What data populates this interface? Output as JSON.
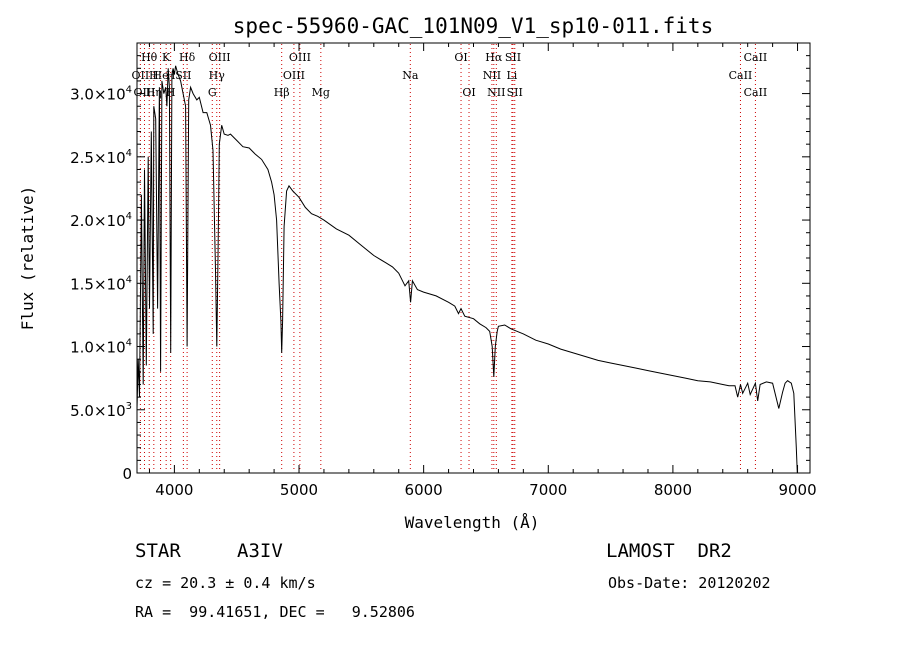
{
  "chart_data": {
    "type": "line",
    "title": "spec-55960-GAC_101N09_V1_sp10-011.fits",
    "xlabel": "Wavelength (Å)",
    "ylabel": "Flux (relative)",
    "xlim": [
      3700,
      9100
    ],
    "ylim": [
      0,
      34000
    ],
    "x_ticks": [
      4000,
      5000,
      6000,
      7000,
      8000,
      9000
    ],
    "x_tick_labels": [
      "4000",
      "5000",
      "6000",
      "7000",
      "8000",
      "9000"
    ],
    "y_ticks": [
      0,
      5000,
      10000,
      15000,
      20000,
      25000,
      30000
    ],
    "y_tick_labels": [
      {
        "mantissa": "0",
        "exp": ""
      },
      {
        "mantissa": "5.0×10",
        "exp": "3"
      },
      {
        "mantissa": "1.0×10",
        "exp": "4"
      },
      {
        "mantissa": "1.5×10",
        "exp": "4"
      },
      {
        "mantissa": "2.0×10",
        "exp": "4"
      },
      {
        "mantissa": "2.5×10",
        "exp": "4"
      },
      {
        "mantissa": "3.0×10",
        "exp": "4"
      }
    ],
    "series": [
      {
        "x": [
          3700,
          3710,
          3720,
          3735,
          3750,
          3760,
          3775,
          3790,
          3800,
          3815,
          3830,
          3835,
          3850,
          3865,
          3880,
          3889,
          3900,
          3915,
          3930,
          3940,
          3950,
          3960,
          3970,
          3980,
          3990,
          4000,
          4010,
          4030,
          4050,
          4070,
          4090,
          4102,
          4115,
          4130,
          4150,
          4180,
          4200,
          4230,
          4260,
          4290,
          4310,
          4330,
          4340,
          4350,
          4360,
          4380,
          4400,
          4430,
          4450,
          4480,
          4500,
          4550,
          4600,
          4650,
          4700,
          4750,
          4780,
          4800,
          4820,
          4840,
          4855,
          4861,
          4868,
          4880,
          4900,
          4920,
          4950,
          5000,
          5050,
          5100,
          5150,
          5200,
          5300,
          5400,
          5500,
          5600,
          5700,
          5750,
          5800,
          5850,
          5880,
          5895,
          5910,
          5950,
          6000,
          6100,
          6200,
          6250,
          6280,
          6300,
          6330,
          6400,
          6450,
          6500,
          6530,
          6550,
          6563,
          6575,
          6590,
          6600,
          6650,
          6700,
          6800,
          6900,
          7000,
          7100,
          7200,
          7300,
          7400,
          7500,
          7600,
          7700,
          7800,
          7900,
          8000,
          8100,
          8200,
          8300,
          8400,
          8450,
          8498,
          8520,
          8542,
          8560,
          8600,
          8620,
          8662,
          8680,
          8700,
          8750,
          8800,
          8850,
          8880,
          8900,
          8920,
          8950,
          8970,
          8990,
          8998
        ],
        "y": [
          5000,
          9000,
          6000,
          22000,
          7000,
          24000,
          8500,
          25000,
          13000,
          27000,
          11000,
          29000,
          28000,
          13000,
          30500,
          8000,
          31000,
          30000,
          30500,
          29000,
          32000,
          30500,
          9500,
          31500,
          32000,
          31500,
          32200,
          31500,
          31000,
          30000,
          29000,
          10000,
          29500,
          30500,
          30000,
          29500,
          29700,
          28500,
          28500,
          27500,
          25500,
          16000,
          10000,
          17000,
          26000,
          27500,
          26800,
          26700,
          26800,
          26500,
          26300,
          25800,
          25700,
          25200,
          24800,
          24000,
          23000,
          22000,
          20000,
          15000,
          12000,
          9500,
          12000,
          19500,
          22300,
          22700,
          22300,
          21800,
          21000,
          20500,
          20300,
          20000,
          19300,
          18800,
          18000,
          17200,
          16600,
          16300,
          15800,
          14800,
          15200,
          13500,
          15200,
          14500,
          14300,
          14000,
          13500,
          13200,
          12600,
          13000,
          12400,
          12200,
          11800,
          11500,
          11200,
          10000,
          7600,
          10000,
          11200,
          11600,
          11700,
          11400,
          11000,
          10500,
          10200,
          9800,
          9500,
          9200,
          8900,
          8700,
          8500,
          8300,
          8100,
          7900,
          7700,
          7500,
          7300,
          7200,
          7000,
          6900,
          6900,
          6000,
          7000,
          6300,
          7100,
          6200,
          7100,
          5700,
          7000,
          7200,
          7100,
          5100,
          6400,
          7100,
          7300,
          7100,
          6300,
          2000,
          0
        ]
      }
    ],
    "spectral_lines": [
      {
        "label": "Hθ",
        "wavelength": 3798,
        "row": 0
      },
      {
        "label": "K",
        "wavelength": 3934,
        "row": 0
      },
      {
        "label": "Hδ",
        "wavelength": 4102,
        "row": 0
      },
      {
        "label": "OIII",
        "wavelength": 4363,
        "row": 0
      },
      {
        "label": "OIII",
        "wavelength": 5007,
        "row": 0
      },
      {
        "label": "OI",
        "wavelength": 6300,
        "row": 0
      },
      {
        "label": "Hα",
        "wavelength": 6563,
        "row": 0
      },
      {
        "label": "SII",
        "wavelength": 6717,
        "row": 0
      },
      {
        "label": "CaII",
        "wavelength": 8662,
        "row": 0
      },
      {
        "label": "OII",
        "wavelength": 3727,
        "row": 1
      },
      {
        "label": "H",
        "wavelength": 3835,
        "row": 1
      },
      {
        "label": "He",
        "wavelength": 3889,
        "row": 1
      },
      {
        "label": "H",
        "wavelength": 3970,
        "row": 1
      },
      {
        "label": "SII",
        "wavelength": 4072,
        "row": 1
      },
      {
        "label": "Hγ",
        "wavelength": 4340,
        "row": 1
      },
      {
        "label": "OIII",
        "wavelength": 4959,
        "row": 1
      },
      {
        "label": "Na",
        "wavelength": 5893,
        "row": 1
      },
      {
        "label": "NII",
        "wavelength": 6548,
        "row": 1
      },
      {
        "label": "Li",
        "wavelength": 6708,
        "row": 1
      },
      {
        "label": "CaII",
        "wavelength": 8542,
        "row": 1
      },
      {
        "label": "OIII",
        "wavelength": 3760,
        "row": 2
      },
      {
        "label": "Hη",
        "wavelength": 3835,
        "row": 2
      },
      {
        "label": "H",
        "wavelength": 3970,
        "row": 2
      },
      {
        "label": "G",
        "wavelength": 4304,
        "row": 2
      },
      {
        "label": "Hβ",
        "wavelength": 4861,
        "row": 2
      },
      {
        "label": "Mg",
        "wavelength": 5175,
        "row": 2
      },
      {
        "label": "OI",
        "wavelength": 6364,
        "row": 2
      },
      {
        "label": "NII",
        "wavelength": 6583,
        "row": 2
      },
      {
        "label": "SII",
        "wavelength": 6731,
        "row": 2
      },
      {
        "label": "CaII",
        "wavelength": 8662,
        "row": 2
      }
    ],
    "spectral_line_color": "#cc0000",
    "grid": false
  },
  "info": {
    "object_class": "STAR",
    "subclass": "A3IV",
    "survey": "LAMOST  DR2",
    "cz": "cz = 20.3 ± 0.4 km/s",
    "obs_date": "Obs-Date: 20120202",
    "coords": "RA =  99.41651, DEC =   9.52806"
  }
}
